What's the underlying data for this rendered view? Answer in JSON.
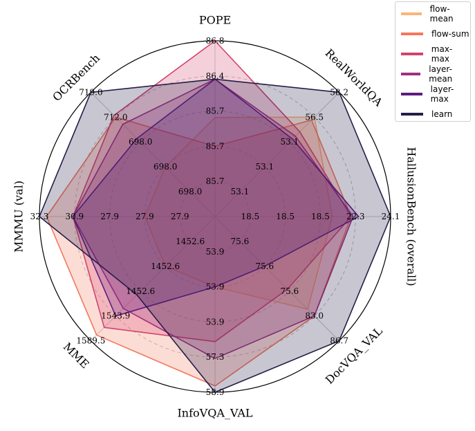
{
  "chart_data": {
    "type": "radar",
    "axes": [
      "POPE",
      "RealWorldQA",
      "HallusionBench (overall)",
      "DocVQA_VAL",
      "InfoVQA_VAL",
      "MME",
      "MMMU (val)",
      "OCRBench"
    ],
    "ticks": [
      [
        "85.7",
        "85.7",
        "85.7",
        "86.4",
        "86.8"
      ],
      [
        "53.1",
        "53.1",
        "53.1",
        "56.5",
        "58.2"
      ],
      [
        "18.5",
        "18.5",
        "18.5",
        "22.3",
        "24.1"
      ],
      [
        "75.6",
        "75.6",
        "75.6",
        "83.0",
        "86.7"
      ],
      [
        "53.9",
        "53.9",
        "53.9",
        "57.3",
        "58.9"
      ],
      [
        "1452.6",
        "1452.6",
        "1452.6",
        "1543.9",
        "1589.5"
      ],
      [
        "27.9",
        "27.9",
        "27.9",
        "30.9",
        "32.3"
      ],
      [
        "698.0",
        "698.0",
        "698.0",
        "712.0",
        "719.0"
      ]
    ],
    "series": [
      {
        "name": "flow-mean",
        "color": "#fcb57b",
        "values": [
          86.0,
          56.5,
          21.0,
          82.0,
          53.9,
          1452.6,
          27.9,
          698.0
        ]
      },
      {
        "name": "flow-sum",
        "color": "#f4775c",
        "values": [
          85.7,
          56.3,
          22.0,
          83.0,
          58.6,
          1579.0,
          32.0,
          712.0
        ]
      },
      {
        "name": "max-max",
        "color": "#d3436e",
        "values": [
          86.8,
          55.5,
          22.0,
          79.0,
          56.5,
          1565.0,
          30.9,
          712.5
        ]
      },
      {
        "name": "layer-mean",
        "color": "#9f2f7f",
        "values": [
          86.4,
          55.2,
          22.1,
          83.0,
          57.3,
          1530.0,
          30.9,
          710.0
        ]
      },
      {
        "name": "layer-max",
        "color": "#5e1c7f",
        "values": [
          86.4,
          55.0,
          22.4,
          75.6,
          53.9,
          1543.9,
          30.9,
          706.0
        ]
      },
      {
        "name": "learn",
        "color": "#241d48",
        "values": [
          86.4,
          58.2,
          24.1,
          86.7,
          58.9,
          1505.0,
          32.3,
          719.0
        ]
      }
    ]
  }
}
